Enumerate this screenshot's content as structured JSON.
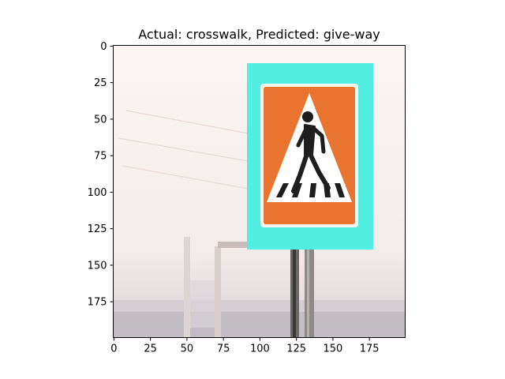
{
  "figure": {
    "title": "Actual: crosswalk, Predicted: give-way"
  },
  "image_axes": {
    "xticks": [
      "0",
      "25",
      "50",
      "75",
      "100",
      "125",
      "150",
      "175"
    ],
    "yticks": [
      "0",
      "25",
      "50",
      "75",
      "100",
      "125",
      "150",
      "175"
    ],
    "pixel_extent": [
      200,
      200
    ]
  },
  "image_content": {
    "subject": "pedestrian-crossing-sign",
    "colors": {
      "background": "#f6eeea",
      "frame": "#52eee2",
      "sign_panel": "#e8742f",
      "triangle": "#ffffff",
      "pictogram": "#1e1e1e",
      "pole": "#5c5c5c"
    }
  }
}
